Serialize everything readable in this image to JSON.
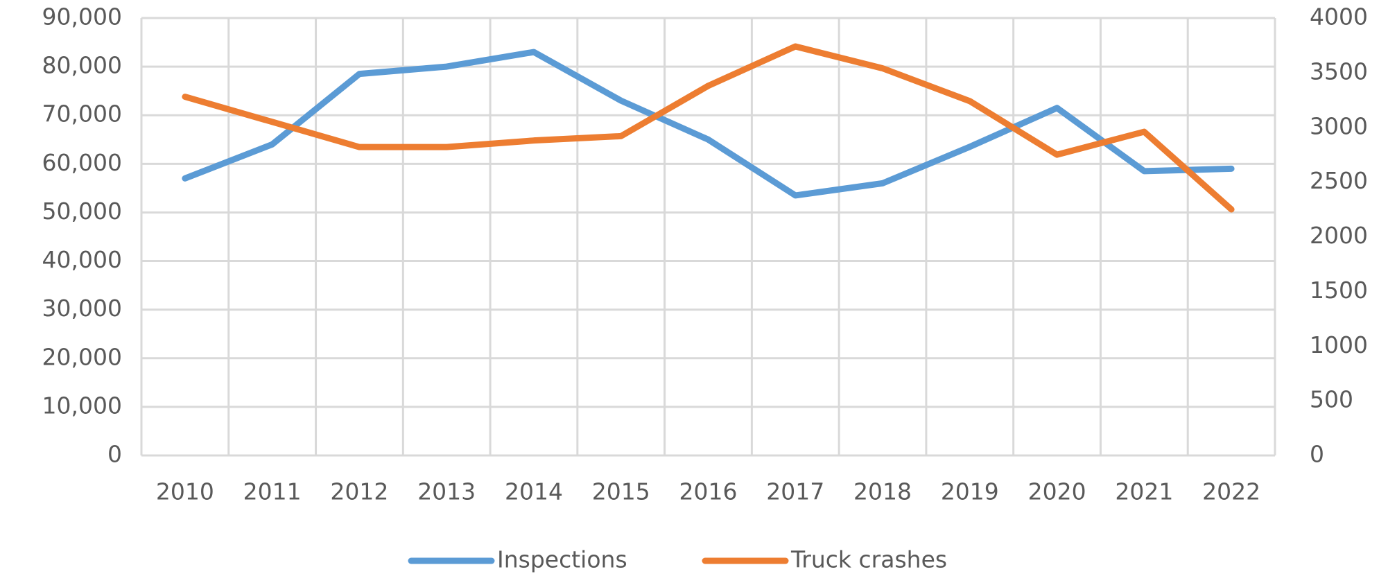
{
  "chart_data": {
    "type": "line",
    "categories": [
      "2010",
      "2011",
      "2012",
      "2013",
      "2014",
      "2015",
      "2016",
      "2017",
      "2018",
      "2019",
      "2020",
      "2021",
      "2022"
    ],
    "series": [
      {
        "name": "Inspections",
        "color": "#5b9bd5",
        "values": [
          57000,
          64000,
          78500,
          80000,
          83000,
          73000,
          65000,
          53500,
          56000,
          63500,
          71500,
          58500,
          59000
        ]
      },
      {
        "name": "Truck crashes",
        "color": "#ed7d31",
        "axis": "y2",
        "values": [
          3280,
          3050,
          2820,
          2820,
          2880,
          2920,
          3380,
          3740,
          3540,
          3240,
          2750,
          2960,
          2250
        ]
      }
    ],
    "ylim": [
      0,
      90000
    ],
    "yticks": [
      0,
      {
        "value": 10000,
        "label": "10,000"
      },
      {
        "value": 20000,
        "label": "20,000"
      },
      {
        "value": 30000,
        "label": "30,000"
      },
      {
        "value": 40000,
        "label": "40,000"
      },
      {
        "value": 50000,
        "label": "50,000"
      },
      {
        "value": 60000,
        "label": "60,000"
      },
      {
        "value": 70000,
        "label": "70,000"
      },
      {
        "value": 80000,
        "label": "80,000"
      },
      {
        "value": 90000,
        "label": "90,000"
      }
    ],
    "y2lim": [
      0,
      4000
    ],
    "y2ticks": [
      0,
      500,
      1000,
      1500,
      2000,
      2500,
      3000,
      3500,
      4000
    ],
    "grid": true,
    "legend": "bottom"
  }
}
